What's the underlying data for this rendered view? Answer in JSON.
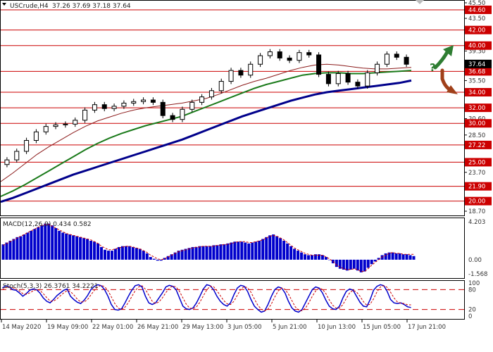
{
  "header": {
    "symbol": "USCrude,H4",
    "ohlc": "37.26 37.69 37.18 37.64"
  },
  "chart_data": [
    {
      "type": "candlestick",
      "panel": "price",
      "ylim": [
        18.7,
        45.5
      ],
      "y_ticks": [
        "45.50",
        "44.60",
        "43.50",
        "42.00",
        "40.00",
        "39.30",
        "37.64",
        "36.68",
        "35.50",
        "34.00",
        "32.00",
        "30.60",
        "30.00",
        "28.50",
        "27.22",
        "25.00",
        "23.70",
        "21.90",
        "20.00",
        "18.70"
      ],
      "level_labels": [
        "44.60",
        "42.00",
        "40.00",
        "36.68",
        "34.00",
        "32.00",
        "30.00",
        "27.22",
        "25.00",
        "21.90",
        "20.00"
      ],
      "current_price": "37.64",
      "levels": [
        44.6,
        42.0,
        40.0,
        36.68,
        34.0,
        32.0,
        30.0,
        27.22,
        25.0,
        21.9,
        20.0
      ],
      "x_labels": [
        "14 May 2020",
        "19 May 09:00",
        "22 May 01:00",
        "26 May 21:00",
        "29 May 13:00",
        "3 Jun 05:00",
        "5 Jun 21:00",
        "10 Jun 13:00",
        "15 Jun 05:00",
        "17 Jun 21:00"
      ],
      "series": [
        {
          "kind": "ma-fast",
          "color": "#8b1a1a",
          "values": [
            22.5,
            23.6,
            24.8,
            26.0,
            27.0,
            27.9,
            28.8,
            29.6,
            30.3,
            30.8,
            31.3,
            31.7,
            32.0,
            32.2,
            32.4,
            32.6,
            32.9,
            33.2,
            33.7,
            34.3,
            34.9,
            35.4,
            35.8,
            36.3,
            36.8,
            37.2,
            37.5,
            37.6,
            37.5,
            37.3,
            37.1,
            37.0,
            37.0,
            37.1,
            37.2
          ]
        },
        {
          "kind": "ma-mid",
          "color": "#1a7a1a",
          "values": [
            20.6,
            21.3,
            22.1,
            23.0,
            23.9,
            24.8,
            25.7,
            26.6,
            27.4,
            28.1,
            28.7,
            29.2,
            29.7,
            30.1,
            30.5,
            30.9,
            31.5,
            32.1,
            32.7,
            33.3,
            33.9,
            34.5,
            35.0,
            35.4,
            35.8,
            36.2,
            36.4,
            36.5,
            36.5,
            36.4,
            36.4,
            36.5,
            36.6,
            36.7,
            36.8
          ]
        },
        {
          "kind": "ma-slow",
          "color": "#00008b",
          "values": [
            19.9,
            20.4,
            21.0,
            21.6,
            22.2,
            22.8,
            23.4,
            23.9,
            24.4,
            24.9,
            25.4,
            25.9,
            26.4,
            26.9,
            27.4,
            27.9,
            28.5,
            29.1,
            29.7,
            30.3,
            30.9,
            31.4,
            31.9,
            32.4,
            32.9,
            33.3,
            33.7,
            34.0,
            34.2,
            34.4,
            34.6,
            34.8,
            35.0,
            35.2,
            35.5
          ]
        }
      ],
      "candles_close": [
        25.3,
        26.4,
        27.8,
        28.9,
        29.6,
        29.8,
        29.9,
        30.4,
        31.7,
        32.4,
        31.9,
        32.2,
        32.6,
        32.8,
        33.0,
        32.7,
        31.0,
        30.5,
        31.8,
        32.7,
        33.4,
        34.2,
        35.4,
        36.8,
        36.2,
        37.6,
        38.7,
        39.2,
        38.4,
        38.1,
        39.1,
        38.8,
        36.3,
        35.1,
        36.4,
        35.3,
        34.8,
        36.5,
        37.6,
        38.9,
        38.5,
        37.6
      ]
    },
    {
      "type": "histogram",
      "panel": "macd",
      "label": "MACD(12,26,9) 0.434 0.582",
      "y_ticks": [
        "4.203",
        "0.00",
        "-1.568"
      ],
      "ylim": [
        -1.568,
        4.203
      ],
      "values": [
        1.7,
        1.9,
        2.1,
        2.3,
        2.5,
        2.6,
        2.8,
        3.0,
        3.2,
        3.4,
        3.6,
        3.8,
        4.0,
        4.0,
        3.8,
        3.5,
        3.2,
        3.0,
        2.9,
        2.8,
        2.7,
        2.6,
        2.5,
        2.4,
        2.3,
        2.1,
        2.0,
        1.8,
        1.4,
        1.1,
        1.0,
        1.0,
        1.2,
        1.4,
        1.5,
        1.5,
        1.5,
        1.4,
        1.3,
        1.2,
        1.0,
        0.7,
        0.3,
        0.1,
        -0.1,
        -0.1,
        0.2,
        0.4,
        0.6,
        0.8,
        1.0,
        1.1,
        1.2,
        1.3,
        1.4,
        1.4,
        1.5,
        1.5,
        1.5,
        1.5,
        1.6,
        1.6,
        1.7,
        1.7,
        1.8,
        1.9,
        2.0,
        2.0,
        2.0,
        1.9,
        1.8,
        1.9,
        2.0,
        2.1,
        2.3,
        2.5,
        2.7,
        2.8,
        2.6,
        2.4,
        2.1,
        1.8,
        1.5,
        1.2,
        1.0,
        0.8,
        0.6,
        0.5,
        0.5,
        0.6,
        0.6,
        0.5,
        0.3,
        0.0,
        -0.4,
        -0.8,
        -1.0,
        -1.1,
        -1.2,
        -1.1,
        -1.0,
        -1.2,
        -1.4,
        -1.3,
        -0.9,
        -0.5,
        -0.2,
        0.2,
        0.5,
        0.7,
        0.8,
        0.8,
        0.7,
        0.7,
        0.6,
        0.6,
        0.5,
        0.4
      ],
      "signal": [
        1.6,
        1.8,
        2.0,
        2.2,
        2.4,
        2.6,
        2.8,
        3.0,
        3.2,
        3.4,
        3.6,
        3.8,
        3.9,
        3.9,
        3.7,
        3.5,
        3.3,
        3.1,
        2.9,
        2.8,
        2.7,
        2.6,
        2.5,
        2.4,
        2.3,
        2.2,
        2.0,
        1.8,
        1.5,
        1.3,
        1.1,
        1.1,
        1.2,
        1.3,
        1.4,
        1.5,
        1.5,
        1.4,
        1.3,
        1.2,
        1.0,
        0.8,
        0.5,
        0.3,
        0.1,
        0.0,
        0.1,
        0.3,
        0.5,
        0.7,
        0.9,
        1.0,
        1.1,
        1.2,
        1.3,
        1.4,
        1.4,
        1.5,
        1.5,
        1.5,
        1.5,
        1.6,
        1.6,
        1.7,
        1.7,
        1.8,
        1.9,
        2.0,
        2.0,
        2.0,
        1.9,
        1.9,
        2.0,
        2.1,
        2.2,
        2.4,
        2.6,
        2.7,
        2.6,
        2.4,
        2.2,
        1.9,
        1.6,
        1.3,
        1.1,
        0.9,
        0.7,
        0.6,
        0.5,
        0.5,
        0.5,
        0.5,
        0.3,
        0.1,
        -0.2,
        -0.6,
        -0.8,
        -1.0,
        -1.1,
        -1.1,
        -1.0,
        -1.1,
        -1.3,
        -1.3,
        -1.0,
        -0.6,
        -0.3,
        0.0,
        0.3,
        0.5,
        0.7,
        0.8,
        0.7,
        0.7,
        0.6,
        0.6,
        0.6,
        0.6
      ]
    },
    {
      "type": "line",
      "panel": "stochastic",
      "label": "Stoch(5,3,3) 26.3761 34.2221",
      "y_ticks": [
        "100",
        "80",
        "20",
        "0"
      ],
      "ylim": [
        0,
        100
      ],
      "levels": [
        80,
        20
      ],
      "series": [
        {
          "kind": "main",
          "color": "#0000cc",
          "values": [
            85,
            92,
            88,
            80,
            78,
            70,
            60,
            68,
            78,
            82,
            80,
            70,
            55,
            45,
            40,
            50,
            62,
            70,
            78,
            82,
            60,
            50,
            42,
            38,
            48,
            62,
            80,
            90,
            95,
            92,
            80,
            60,
            35,
            20,
            18,
            22,
            40,
            60,
            78,
            92,
            95,
            88,
            60,
            40,
            35,
            40,
            55,
            70,
            88,
            93,
            90,
            80,
            55,
            30,
            22,
            20,
            25,
            40,
            60,
            82,
            95,
            92,
            80,
            60,
            45,
            35,
            30,
            40,
            65,
            85,
            93,
            90,
            75,
            50,
            30,
            20,
            12,
            15,
            35,
            60,
            80,
            88,
            85,
            70,
            45,
            25,
            15,
            12,
            20,
            40,
            60,
            80,
            88,
            85,
            70,
            48,
            30,
            22,
            20,
            30,
            55,
            75,
            82,
            78,
            60,
            42,
            30,
            28,
            50,
            78,
            90,
            95,
            92,
            75,
            50,
            40,
            38,
            40,
            35,
            28,
            26
          ]
        },
        {
          "kind": "signal",
          "color": "#cc0000",
          "values": [
            80,
            86,
            88,
            86,
            82,
            76,
            68,
            66,
            70,
            76,
            80,
            78,
            68,
            56,
            46,
            45,
            52,
            61,
            70,
            77,
            74,
            64,
            51,
            43,
            43,
            50,
            64,
            78,
            88,
            93,
            89,
            77,
            58,
            38,
            24,
            20,
            27,
            41,
            59,
            77,
            88,
            92,
            81,
            63,
            45,
            38,
            43,
            55,
            71,
            84,
            91,
            88,
            75,
            55,
            36,
            24,
            22,
            28,
            42,
            61,
            79,
            90,
            89,
            77,
            62,
            47,
            37,
            35,
            45,
            63,
            81,
            89,
            86,
            72,
            52,
            33,
            21,
            16,
            21,
            37,
            58,
            76,
            85,
            81,
            67,
            47,
            28,
            18,
            16,
            24,
            40,
            60,
            76,
            84,
            81,
            68,
            49,
            33,
            24,
            24,
            35,
            53,
            71,
            78,
            73,
            60,
            44,
            33,
            36,
            52,
            73,
            88,
            92,
            87,
            72,
            55,
            43,
            39,
            38,
            34,
            34
          ]
        }
      ]
    }
  ],
  "annotations": {
    "up_arrow_color": "#2e7d32",
    "down_arrow_color": "#a0401a",
    "question_mark": "?"
  },
  "colors": {
    "level_line": "#cc0000",
    "candle": "#000000",
    "macd_bar": "#0000cc",
    "macd_signal": "#cc0000",
    "label_bg": "#cc0000",
    "price_label_bg": "#000000"
  }
}
